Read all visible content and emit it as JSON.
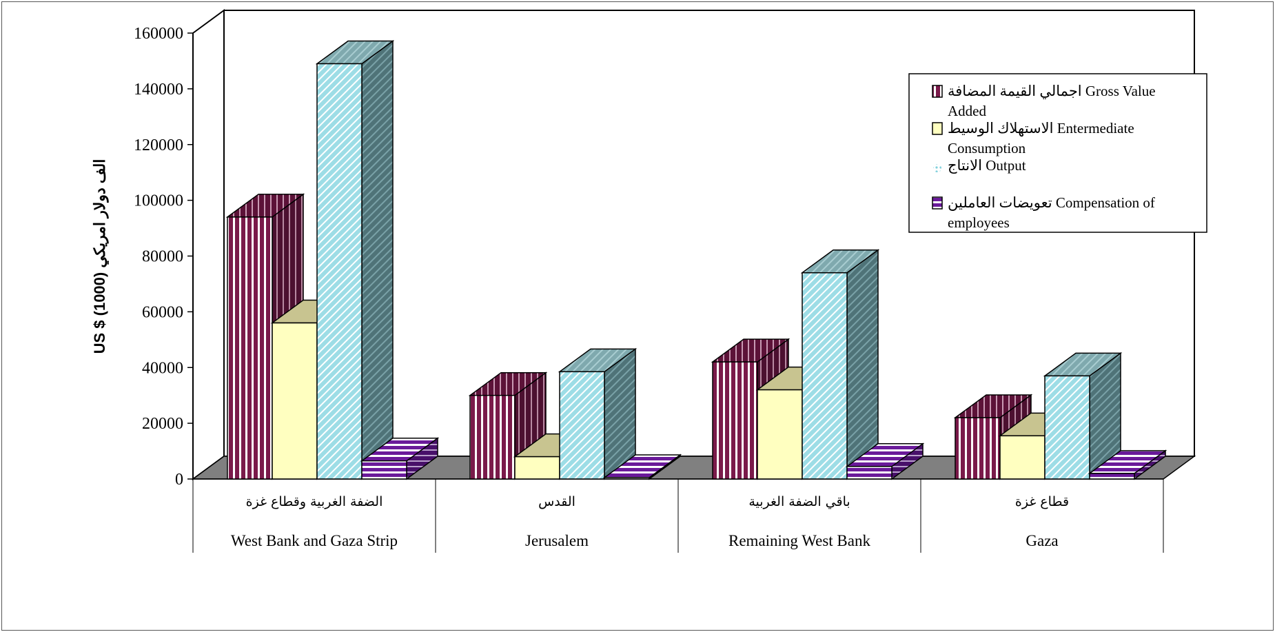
{
  "chart_data": {
    "type": "bar",
    "title": "",
    "ylabel": "US $ (1000)  الف دولار امريكي",
    "ylim": [
      0,
      160000
    ],
    "yticks": [
      "0",
      "20000",
      "40000",
      "60000",
      "80000",
      "100000",
      "120000",
      "140000",
      "160000"
    ],
    "categories": [
      {
        "ar": "الضفة الغربية وقطاع غزة",
        "en": "West Bank and Gaza Strip"
      },
      {
        "ar": "القدس",
        "en": "Jerusalem"
      },
      {
        "ar": "باقي الضفة الغربية",
        "en": "Remaining West Bank"
      },
      {
        "ar": "قطاع غزة",
        "en": "Gaza"
      }
    ],
    "series": [
      {
        "name": "اجمالي القيمة المضافة Gross Value Added",
        "legend_lines": [
          "اجمالي القيمة المضافة Gross Value",
          "Added"
        ],
        "color": "#7a1a4a",
        "pattern": "vstripe",
        "values": [
          94000,
          30000,
          42000,
          22000
        ]
      },
      {
        "name": "الاستهلاك الوسيط Entermediate Consumption",
        "legend_lines": [
          "الاستهلاك الوسيط Entermediate",
          "Consumption"
        ],
        "color": "#ffffc0",
        "pattern": "solid",
        "values": [
          56000,
          8000,
          32000,
          15500
        ]
      },
      {
        "name": "الانتاج Output",
        "legend_lines": [
          "الانتاج Output"
        ],
        "color": "#a8e4ec",
        "pattern": "diag",
        "values": [
          149000,
          38500,
          74000,
          37000
        ]
      },
      {
        "name": "تعويضات العاملين Compensation of employees",
        "legend_lines": [
          "تعويضات العاملين Compensation of",
          "employees"
        ],
        "color": "#6a1a9a",
        "pattern": "hstripe",
        "values": [
          6500,
          500,
          4500,
          2000
        ]
      }
    ],
    "legend_position": "top-right",
    "grid": false
  }
}
